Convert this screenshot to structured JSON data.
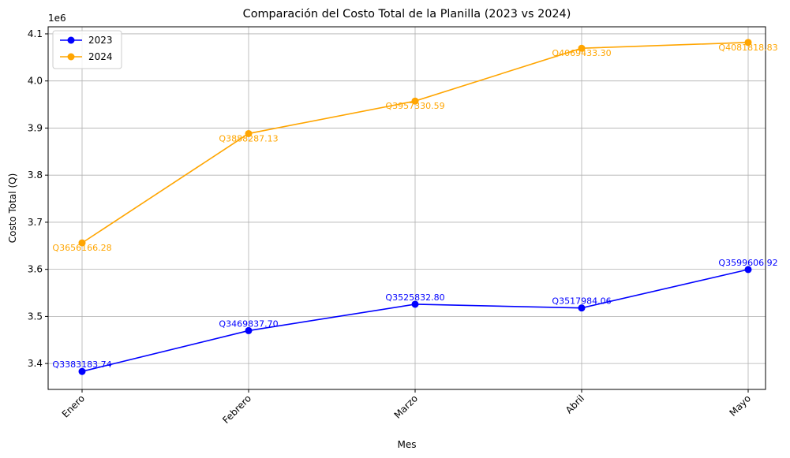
{
  "chart_data": {
    "type": "line",
    "title": "Comparación del Costo Total de la Planilla (2023 vs 2024)",
    "xlabel": "Mes",
    "ylabel": "Costo Total (Q)",
    "y_offset_label": "1e6",
    "categories": [
      "Enero",
      "Febrero",
      "Marzo",
      "Abril",
      "Mayo"
    ],
    "ylim": [
      3.345,
      4.115
    ],
    "yticks": [
      3.4,
      3.5,
      3.6,
      3.7,
      3.8,
      3.9,
      4.0,
      4.1
    ],
    "ytick_labels": [
      "3.4",
      "3.5",
      "3.6",
      "3.7",
      "3.8",
      "3.9",
      "4.0",
      "4.1"
    ],
    "grid": true,
    "legend_position": "top-left",
    "series": [
      {
        "name": "2023",
        "color": "#0000ff",
        "values": [
          3.38318374,
          3.4698377,
          3.5258328,
          3.51798406,
          3.59960692
        ],
        "labels": [
          "Q3383183.74",
          "Q3469837.70",
          "Q3525832.80",
          "Q3517984.06",
          "Q3599606.92"
        ]
      },
      {
        "name": "2024",
        "color": "#ffa500",
        "values": [
          3.65616628,
          3.88828713,
          3.95733059,
          4.0694333,
          4.08181883
        ],
        "labels": [
          "Q3656166.28",
          "Q3888287.13",
          "Q3957330.59",
          "Q4069433.30",
          "Q4081818.83"
        ]
      }
    ]
  }
}
